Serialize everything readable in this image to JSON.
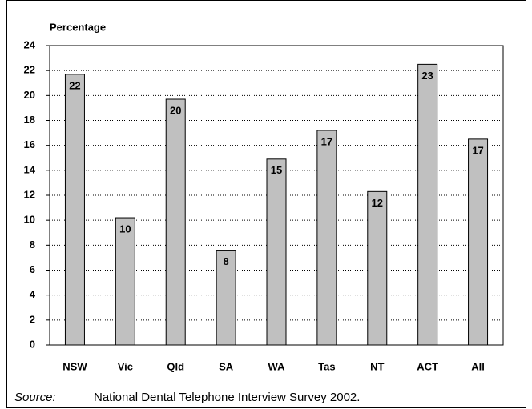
{
  "chart_data": {
    "type": "bar",
    "y_label": "Percentage",
    "categories": [
      "NSW",
      "Vic",
      "Qld",
      "SA",
      "WA",
      "Tas",
      "NT",
      "ACT",
      "All"
    ],
    "values": [
      21.7,
      10.2,
      19.7,
      7.6,
      14.9,
      17.2,
      12.3,
      22.5,
      16.5
    ],
    "value_labels": [
      "22",
      "10",
      "20",
      "8",
      "15",
      "17",
      "12",
      "23",
      "17"
    ],
    "color": "#c0c0c0",
    "ylim": [
      0,
      24
    ],
    "yticks": [
      0,
      2,
      4,
      6,
      8,
      10,
      12,
      14,
      16,
      18,
      20,
      22,
      24
    ],
    "grid": true,
    "source": {
      "label": "Source:",
      "text": "National Dental Telephone Interview Survey 2002."
    }
  }
}
